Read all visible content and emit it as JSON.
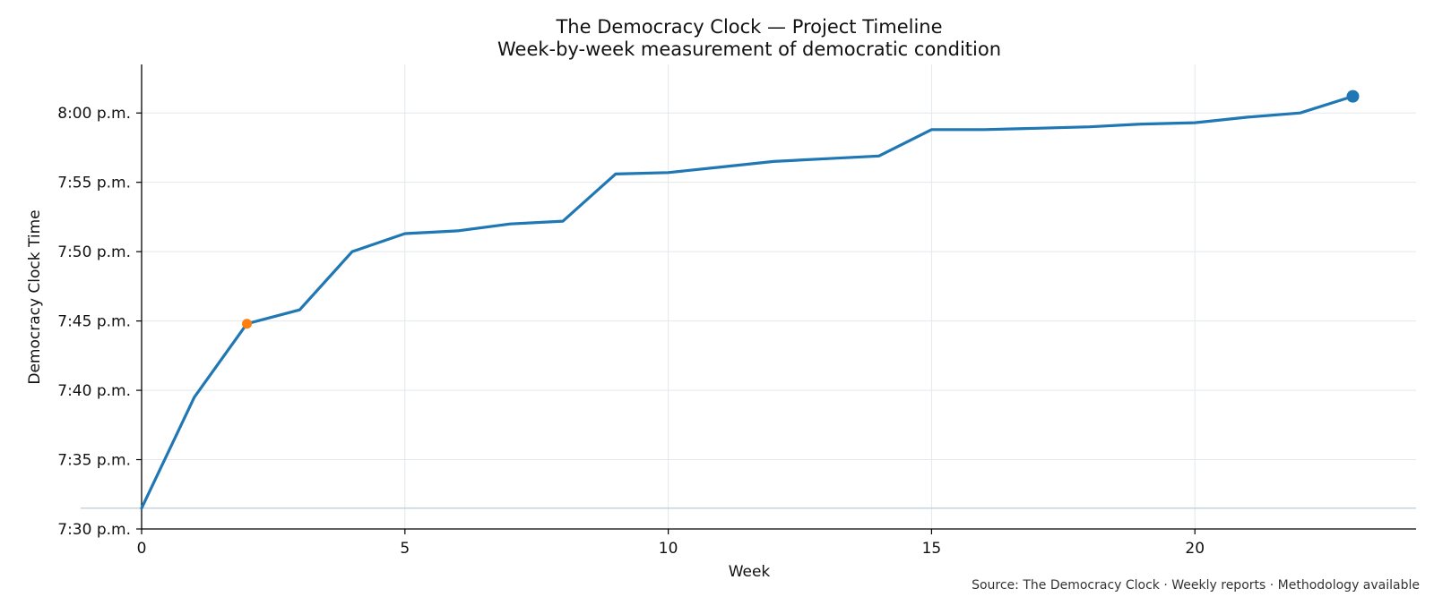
{
  "chart_data": {
    "type": "line",
    "title": "The Democracy Clock — Project Timeline",
    "subtitle": "Week-by-week measurement of democratic condition",
    "xlabel": "Week",
    "ylabel": "Democracy Clock Time",
    "xlim": [
      0,
      24.2
    ],
    "ylim_minutes": [
      450,
      483.5
    ],
    "x_ticks": [
      0,
      5,
      10,
      15,
      20
    ],
    "y_ticks": [
      {
        "minutes": 450,
        "label": "7:30 p.m."
      },
      {
        "minutes": 455,
        "label": "7:35 p.m."
      },
      {
        "minutes": 460,
        "label": "7:40 p.m."
      },
      {
        "minutes": 465,
        "label": "7:45 p.m."
      },
      {
        "minutes": 470,
        "label": "7:50 p.m."
      },
      {
        "minutes": 475,
        "label": "7:55 p.m."
      },
      {
        "minutes": 480,
        "label": "8:00 p.m."
      }
    ],
    "grid": true,
    "baseline_minutes": 451.5,
    "series": [
      {
        "color": "#1f77b4",
        "x": [
          0,
          1,
          2,
          3,
          4,
          5,
          6,
          7,
          8,
          9,
          10,
          11,
          12,
          13,
          14,
          15,
          16,
          17,
          18,
          19,
          20,
          21,
          22,
          23
        ],
        "y_minutes": [
          451.5,
          459.5,
          464.8,
          465.8,
          470.0,
          471.3,
          471.5,
          472.0,
          472.2,
          475.6,
          475.7,
          476.1,
          476.5,
          476.7,
          476.9,
          478.8,
          478.8,
          478.9,
          479.0,
          479.2,
          479.3,
          479.7,
          480.0,
          481.2
        ]
      }
    ],
    "highlights": [
      {
        "x": 2,
        "y_minutes": 464.8,
        "color": "#ff7f0e"
      },
      {
        "x": 23,
        "y_minutes": 481.2,
        "color": "#1f77b4"
      }
    ],
    "source": "Source: The Democracy Clock · Weekly reports · Methodology available"
  }
}
